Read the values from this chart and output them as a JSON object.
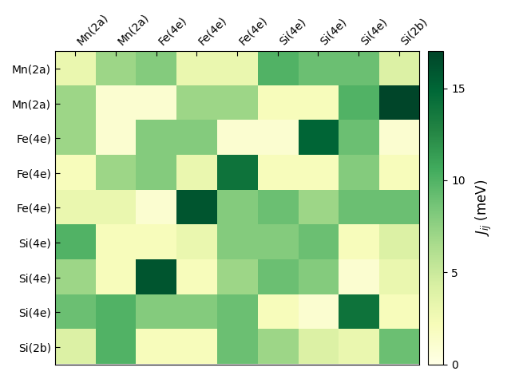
{
  "labels": [
    "Mn(2a)",
    "Mn(2a)",
    "Fe(4e)",
    "Fe(4e)",
    "Fe(4e)",
    "Si(4e)",
    "Si(4e)",
    "Si(4e)",
    "Si(2b)"
  ],
  "matrix": [
    [
      3,
      7,
      8,
      3,
      3,
      10,
      9,
      9,
      4
    ],
    [
      7,
      1,
      1,
      7,
      7,
      2,
      2,
      10,
      17
    ],
    [
      7,
      1,
      8,
      8,
      1,
      1,
      15,
      9,
      1
    ],
    [
      2,
      7,
      8,
      3,
      14,
      2,
      2,
      8,
      2
    ],
    [
      3,
      3,
      1,
      16,
      8,
      9,
      7,
      9,
      9
    ],
    [
      10,
      2,
      2,
      3,
      8,
      8,
      9,
      2,
      4
    ],
    [
      7,
      2,
      16,
      2,
      7,
      9,
      8,
      1,
      3
    ],
    [
      9,
      10,
      8,
      8,
      9,
      2,
      1,
      14,
      2
    ],
    [
      4,
      10,
      2,
      2,
      9,
      7,
      4,
      3,
      9
    ]
  ],
  "vmin": 0,
  "vmax": 17,
  "cmap": "YlGn",
  "colorbar_label": "$J_{ij}$ (meV)",
  "colorbar_ticks": [
    0,
    5,
    10,
    15
  ],
  "title": "",
  "figsize": [
    6.4,
    4.8
  ],
  "dpi": 100
}
